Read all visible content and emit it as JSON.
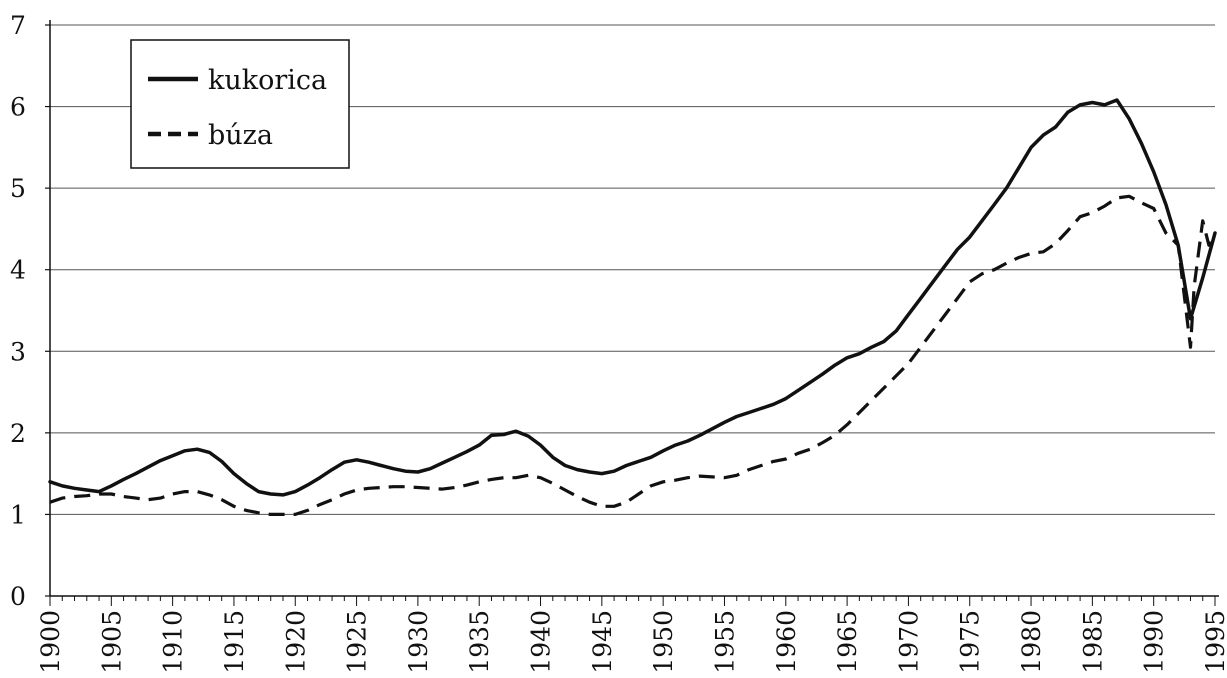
{
  "chart_data": {
    "type": "line",
    "title": "",
    "xlabel": "",
    "ylabel": "",
    "xlim": [
      1900,
      1995
    ],
    "ylim": [
      0,
      7
    ],
    "grid": "horizontal",
    "legend_position": "top-left",
    "yticks": [
      "0",
      "1",
      "2",
      "3",
      "4",
      "5",
      "6",
      "7"
    ],
    "xticks": [
      "1900",
      "1905",
      "1910",
      "1915",
      "1920",
      "1925",
      "1930",
      "1935",
      "1940",
      "1945",
      "1950",
      "1955",
      "1960",
      "1965",
      "1970",
      "1975",
      "1980",
      "1985",
      "1990",
      "1995"
    ],
    "series": [
      {
        "name": "kukorica",
        "style": "solid",
        "x": [
          1900,
          1901,
          1902,
          1903,
          1904,
          1905,
          1906,
          1907,
          1908,
          1909,
          1910,
          1911,
          1912,
          1913,
          1914,
          1915,
          1916,
          1917,
          1918,
          1919,
          1920,
          1921,
          1922,
          1923,
          1924,
          1925,
          1926,
          1927,
          1928,
          1929,
          1930,
          1931,
          1932,
          1933,
          1934,
          1935,
          1936,
          1937,
          1938,
          1939,
          1940,
          1941,
          1942,
          1943,
          1944,
          1945,
          1946,
          1947,
          1948,
          1949,
          1950,
          1951,
          1952,
          1953,
          1954,
          1955,
          1956,
          1957,
          1958,
          1959,
          1960,
          1961,
          1962,
          1963,
          1964,
          1965,
          1966,
          1967,
          1968,
          1969,
          1970,
          1971,
          1972,
          1973,
          1974,
          1975,
          1976,
          1977,
          1978,
          1979,
          1980,
          1981,
          1982,
          1983,
          1984,
          1985,
          1986,
          1987,
          1988,
          1989,
          1990,
          1991,
          1992,
          1993,
          1994,
          1995
        ],
        "values": [
          1.4,
          1.35,
          1.32,
          1.3,
          1.28,
          1.35,
          1.43,
          1.5,
          1.58,
          1.66,
          1.72,
          1.78,
          1.8,
          1.76,
          1.65,
          1.5,
          1.38,
          1.28,
          1.25,
          1.24,
          1.28,
          1.36,
          1.45,
          1.55,
          1.64,
          1.67,
          1.64,
          1.6,
          1.56,
          1.53,
          1.52,
          1.56,
          1.63,
          1.7,
          1.77,
          1.85,
          1.97,
          1.98,
          2.02,
          1.96,
          1.85,
          1.7,
          1.6,
          1.55,
          1.52,
          1.5,
          1.53,
          1.6,
          1.65,
          1.7,
          1.78,
          1.85,
          1.9,
          1.97,
          2.05,
          2.13,
          2.2,
          2.25,
          2.3,
          2.35,
          2.42,
          2.52,
          2.62,
          2.72,
          2.83,
          2.92,
          2.97,
          3.05,
          3.12,
          3.25,
          3.45,
          3.65,
          3.85,
          4.05,
          4.25,
          4.4,
          4.6,
          4.8,
          5.0,
          5.25,
          5.5,
          5.65,
          5.75,
          5.93,
          6.02,
          6.05,
          6.02,
          6.08,
          5.85,
          5.55,
          5.2,
          4.8,
          4.3,
          3.4,
          3.9,
          4.45
        ]
      },
      {
        "name": "búza",
        "style": "dashed",
        "x": [
          1900,
          1901,
          1902,
          1903,
          1904,
          1905,
          1906,
          1907,
          1908,
          1909,
          1910,
          1911,
          1912,
          1913,
          1914,
          1915,
          1916,
          1917,
          1918,
          1919,
          1920,
          1921,
          1922,
          1923,
          1924,
          1925,
          1926,
          1927,
          1928,
          1929,
          1930,
          1931,
          1932,
          1933,
          1934,
          1935,
          1936,
          1937,
          1938,
          1939,
          1940,
          1941,
          1942,
          1943,
          1944,
          1945,
          1946,
          1947,
          1948,
          1949,
          1950,
          1951,
          1952,
          1953,
          1954,
          1955,
          1956,
          1957,
          1958,
          1959,
          1960,
          1961,
          1962,
          1963,
          1964,
          1965,
          1966,
          1967,
          1968,
          1969,
          1970,
          1971,
          1972,
          1973,
          1974,
          1975,
          1976,
          1977,
          1978,
          1979,
          1980,
          1981,
          1982,
          1983,
          1984,
          1985,
          1986,
          1987,
          1988,
          1989,
          1990,
          1991,
          1992,
          1993,
          1993.3,
          1994,
          1994.5,
          1995
        ],
        "values": [
          1.15,
          1.2,
          1.22,
          1.23,
          1.25,
          1.25,
          1.22,
          1.2,
          1.18,
          1.2,
          1.25,
          1.28,
          1.28,
          1.24,
          1.18,
          1.1,
          1.05,
          1.02,
          1.0,
          1.0,
          1.0,
          1.05,
          1.12,
          1.18,
          1.25,
          1.3,
          1.32,
          1.33,
          1.34,
          1.34,
          1.33,
          1.32,
          1.31,
          1.33,
          1.36,
          1.4,
          1.43,
          1.45,
          1.45,
          1.48,
          1.45,
          1.38,
          1.3,
          1.22,
          1.15,
          1.1,
          1.1,
          1.15,
          1.25,
          1.35,
          1.4,
          1.42,
          1.45,
          1.47,
          1.46,
          1.45,
          1.48,
          1.55,
          1.6,
          1.65,
          1.68,
          1.75,
          1.8,
          1.88,
          1.97,
          2.1,
          2.25,
          2.4,
          2.55,
          2.7,
          2.85,
          3.05,
          3.25,
          3.45,
          3.65,
          3.85,
          3.95,
          4.0,
          4.08,
          4.15,
          4.2,
          4.22,
          4.32,
          4.48,
          4.65,
          4.7,
          4.78,
          4.88,
          4.9,
          4.82,
          4.75,
          4.45,
          4.3,
          3.05,
          3.8,
          4.6,
          4.3,
          4.45
        ]
      }
    ]
  }
}
